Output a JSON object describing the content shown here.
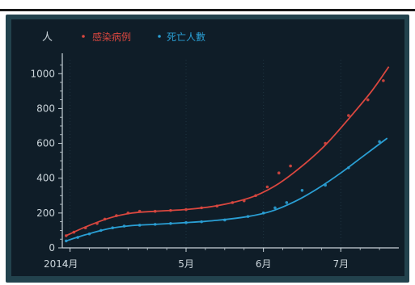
{
  "chart_data": {
    "type": "line",
    "unit_label": "人",
    "colors": {
      "background": "#0f1d28",
      "frame": "#22424d",
      "axis": "#c9d3d9",
      "series_infected": "#d9473f",
      "series_deaths": "#2a9fd4"
    },
    "x_axis": {
      "year_label": "2014",
      "ticks": [
        {
          "x": 3.5,
          "label": "4月"
        },
        {
          "x": 5,
          "label": "5月"
        },
        {
          "x": 6,
          "label": "6月"
        },
        {
          "x": 7,
          "label": "7月"
        }
      ],
      "xlim": [
        3.4,
        7.75
      ]
    },
    "y_axis": {
      "ticks": [
        0,
        200,
        400,
        600,
        800,
        1000
      ],
      "ylim": [
        0,
        1080
      ]
    },
    "series": [
      {
        "name": "感染病例",
        "color": "#d9473f",
        "points": [
          {
            "x": 3.45,
            "y": 70
          },
          {
            "x": 3.55,
            "y": 90
          },
          {
            "x": 3.7,
            "y": 115
          },
          {
            "x": 3.85,
            "y": 140
          },
          {
            "x": 3.95,
            "y": 165
          },
          {
            "x": 4.1,
            "y": 185
          },
          {
            "x": 4.25,
            "y": 200
          },
          {
            "x": 4.4,
            "y": 210
          },
          {
            "x": 4.6,
            "y": 210
          },
          {
            "x": 4.8,
            "y": 215
          },
          {
            "x": 5.0,
            "y": 220
          },
          {
            "x": 5.2,
            "y": 230
          },
          {
            "x": 5.4,
            "y": 240
          },
          {
            "x": 5.6,
            "y": 260
          },
          {
            "x": 5.75,
            "y": 270
          },
          {
            "x": 5.9,
            "y": 300
          },
          {
            "x": 6.05,
            "y": 350
          },
          {
            "x": 6.2,
            "y": 430
          },
          {
            "x": 6.35,
            "y": 470
          },
          {
            "x": 6.8,
            "y": 600
          },
          {
            "x": 7.1,
            "y": 760
          },
          {
            "x": 7.35,
            "y": 850
          },
          {
            "x": 7.55,
            "y": 960
          }
        ],
        "trend": [
          {
            "x": 3.45,
            "y": 70
          },
          {
            "x": 3.7,
            "y": 120
          },
          {
            "x": 4.0,
            "y": 170
          },
          {
            "x": 4.3,
            "y": 200
          },
          {
            "x": 4.6,
            "y": 210
          },
          {
            "x": 5.0,
            "y": 220
          },
          {
            "x": 5.3,
            "y": 235
          },
          {
            "x": 5.6,
            "y": 260
          },
          {
            "x": 5.9,
            "y": 300
          },
          {
            "x": 6.2,
            "y": 370
          },
          {
            "x": 6.5,
            "y": 470
          },
          {
            "x": 6.8,
            "y": 590
          },
          {
            "x": 7.1,
            "y": 740
          },
          {
            "x": 7.4,
            "y": 900
          },
          {
            "x": 7.62,
            "y": 1040
          }
        ]
      },
      {
        "name": "死亡人數",
        "color": "#2a9fd4",
        "points": [
          {
            "x": 3.45,
            "y": 40
          },
          {
            "x": 3.6,
            "y": 60
          },
          {
            "x": 3.75,
            "y": 80
          },
          {
            "x": 3.9,
            "y": 100
          },
          {
            "x": 4.05,
            "y": 115
          },
          {
            "x": 4.2,
            "y": 125
          },
          {
            "x": 4.4,
            "y": 130
          },
          {
            "x": 4.6,
            "y": 135
          },
          {
            "x": 4.8,
            "y": 140
          },
          {
            "x": 5.0,
            "y": 145
          },
          {
            "x": 5.2,
            "y": 150
          },
          {
            "x": 5.5,
            "y": 160
          },
          {
            "x": 5.8,
            "y": 180
          },
          {
            "x": 6.0,
            "y": 200
          },
          {
            "x": 6.15,
            "y": 230
          },
          {
            "x": 6.3,
            "y": 260
          },
          {
            "x": 6.5,
            "y": 330
          },
          {
            "x": 6.8,
            "y": 360
          },
          {
            "x": 7.1,
            "y": 460
          },
          {
            "x": 7.5,
            "y": 610
          }
        ],
        "trend": [
          {
            "x": 3.45,
            "y": 40
          },
          {
            "x": 3.7,
            "y": 75
          },
          {
            "x": 4.0,
            "y": 110
          },
          {
            "x": 4.3,
            "y": 128
          },
          {
            "x": 4.6,
            "y": 135
          },
          {
            "x": 5.0,
            "y": 145
          },
          {
            "x": 5.4,
            "y": 158
          },
          {
            "x": 5.8,
            "y": 180
          },
          {
            "x": 6.1,
            "y": 210
          },
          {
            "x": 6.4,
            "y": 265
          },
          {
            "x": 6.7,
            "y": 340
          },
          {
            "x": 7.0,
            "y": 430
          },
          {
            "x": 7.3,
            "y": 530
          },
          {
            "x": 7.6,
            "y": 630
          }
        ]
      }
    ]
  }
}
